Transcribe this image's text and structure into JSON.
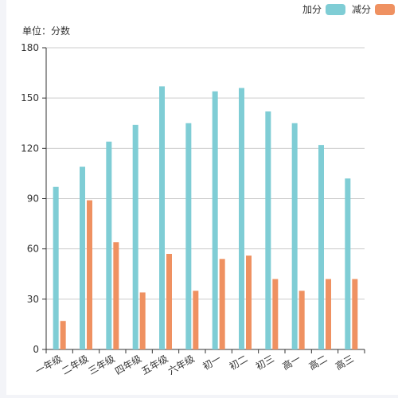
{
  "unit_label": "单位：分数",
  "colors": {
    "series_add": "#7fcdd5",
    "series_sub": "#ef9161",
    "grid": "#cccccc",
    "axis": "#333333"
  },
  "chart_data": {
    "type": "bar",
    "categories": [
      "一年级",
      "二年级",
      "三年级",
      "四年级",
      "五年级",
      "六年级",
      "初一",
      "初二",
      "初三",
      "高一",
      "高二",
      "高三"
    ],
    "series": [
      {
        "name": "加分",
        "values": [
          97,
          109,
          124,
          134,
          157,
          135,
          154,
          156,
          142,
          135,
          122,
          102
        ]
      },
      {
        "name": "减分",
        "values": [
          17,
          89,
          64,
          34,
          57,
          35,
          54,
          56,
          42,
          35,
          42,
          42
        ]
      }
    ],
    "ylim": [
      0,
      180
    ],
    "yticks": [
      0,
      30,
      60,
      90,
      120,
      150,
      180
    ],
    "grid": true,
    "legend_position": "top-right"
  }
}
